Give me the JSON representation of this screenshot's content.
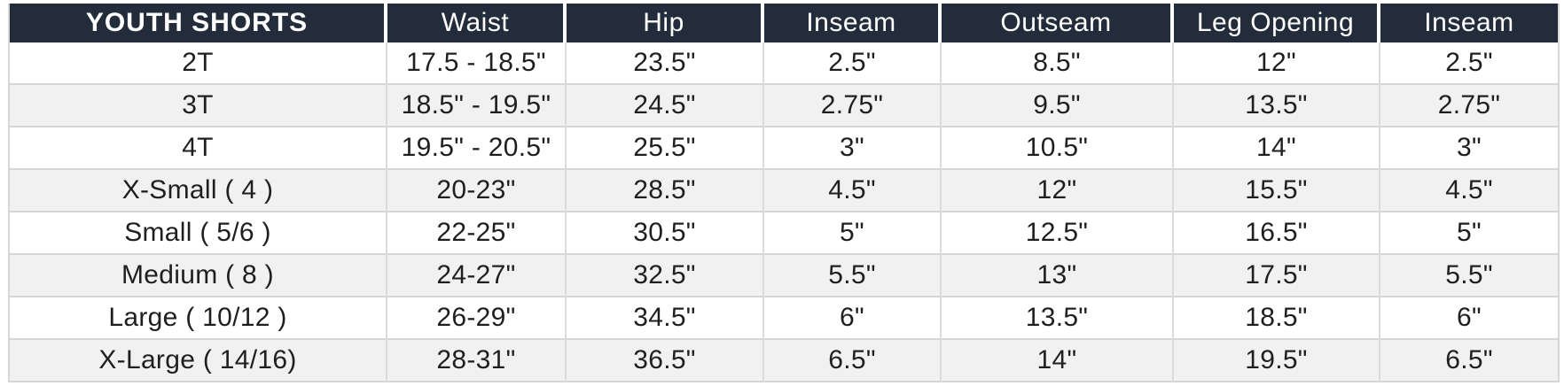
{
  "colors": {
    "header_bg": "#222c3a",
    "header_text": "#ffffff",
    "row_bg": "#ffffff",
    "row_alt_bg": "#f1f1f1",
    "border": "#d6d6d6",
    "body_text": "#1f1f1f"
  },
  "chart_data": {
    "type": "table",
    "title": "YOUTH SHORTS",
    "columns": [
      "YOUTH SHORTS",
      "Waist",
      "Hip",
      "Inseam",
      "Outseam",
      "Leg Opening",
      "Inseam"
    ],
    "rows": [
      [
        "2T",
        "17.5 - 18.5\"",
        "23.5\"",
        "2.5\"",
        "8.5\"",
        "12\"",
        "2.5\""
      ],
      [
        "3T",
        "18.5\" - 19.5\"",
        "24.5\"",
        "2.75\"",
        "9.5\"",
        "13.5\"",
        "2.75\""
      ],
      [
        "4T",
        "19.5\" - 20.5\"",
        "25.5\"",
        "3\"",
        "10.5\"",
        "14\"",
        "3\""
      ],
      [
        "X-Small ( 4 )",
        "20-23\"",
        "28.5\"",
        "4.5\"",
        "12\"",
        "15.5\"",
        "4.5\""
      ],
      [
        "Small ( 5/6 )",
        "22-25\"",
        "30.5\"",
        "5\"",
        "12.5\"",
        "16.5\"",
        "5\""
      ],
      [
        "Medium ( 8 )",
        "24-27\"",
        "32.5\"",
        "5.5\"",
        "13\"",
        "17.5\"",
        "5.5\""
      ],
      [
        "Large ( 10/12 )",
        "26-29\"",
        "34.5\"",
        "6\"",
        "13.5\"",
        "18.5\"",
        "6\""
      ],
      [
        "X-Large ( 14/16)",
        "28-31\"",
        "36.5\"",
        "6.5\"",
        "14\"",
        "19.5\"",
        "6.5\""
      ]
    ],
    "layout": {
      "striped": true,
      "stripe_pattern": "even-rows-gray",
      "header_style": "dark-navy-white-text"
    }
  }
}
